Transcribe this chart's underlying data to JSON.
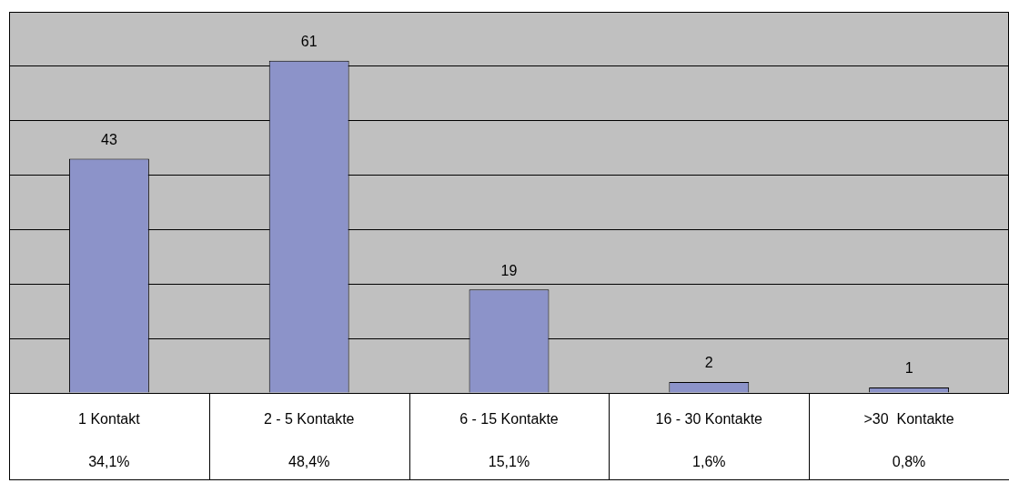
{
  "chart_data": {
    "type": "bar",
    "categories": [
      "1 Kontakt",
      "2 - 5 Kontakte",
      "6 - 15 Kontakte",
      "16 - 30 Kontakte",
      ">30  Kontakte"
    ],
    "values": [
      43,
      61,
      19,
      2,
      1
    ],
    "color": "#8c93c9",
    "data_labels": true,
    "ylim": [
      0,
      70
    ],
    "yticks": [
      {
        "value": 0,
        "label": null
      },
      {
        "value": 10,
        "label": null
      },
      {
        "value": 20,
        "label": null
      },
      {
        "value": 30,
        "label": null
      },
      {
        "value": 40,
        "label": null
      },
      {
        "value": 50,
        "label": null
      },
      {
        "value": 60,
        "label": null
      },
      {
        "value": 70,
        "label": null
      }
    ],
    "grid": "y",
    "legend": false,
    "annotations": [
      "34,1%",
      "48,4%",
      "15,1%",
      "1,6%",
      "0,8%"
    ]
  }
}
